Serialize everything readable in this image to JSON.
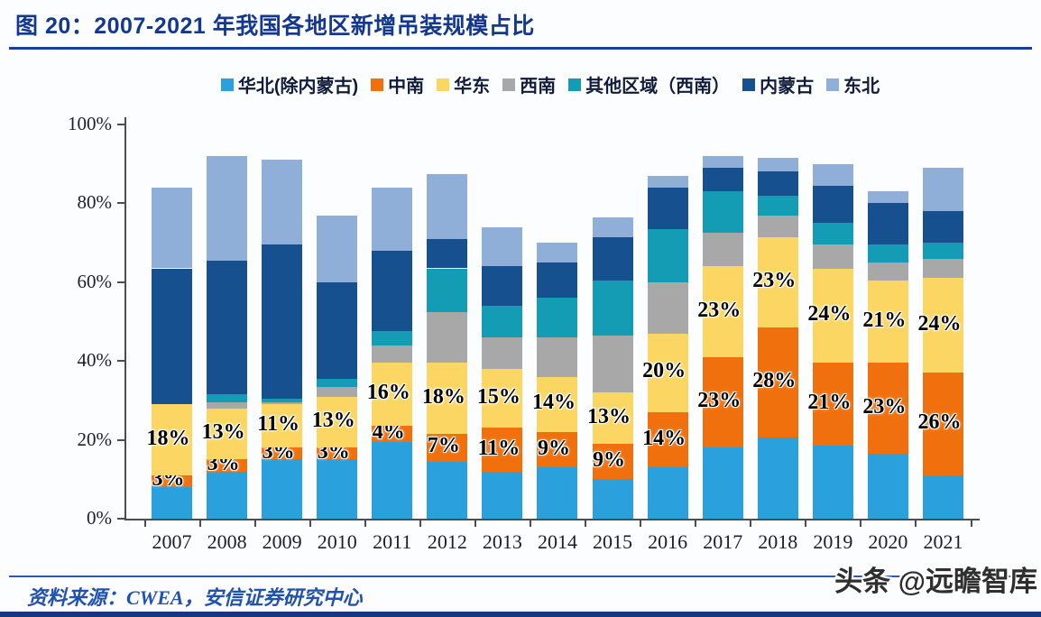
{
  "header": {
    "title": "图 20：2007-2021 年我国各地区新增吊装规模占比"
  },
  "footer": {
    "source": "资料来源：CWEA，安信证券研究中心",
    "watermark": "头条 @远瞻智库"
  },
  "chart_data": {
    "type": "bar",
    "stacked": true,
    "title": "2007-2021 年我国各地区新增吊装规模占比",
    "xlabel": "",
    "ylabel": "",
    "ylim": [
      0,
      100
    ],
    "grid": false,
    "legend_position": "top",
    "categories": [
      "2007",
      "2008",
      "2009",
      "2010",
      "2011",
      "2012",
      "2013",
      "2014",
      "2015",
      "2016",
      "2017",
      "2018",
      "2019",
      "2020",
      "2021"
    ],
    "y_ticks": [
      {
        "value": 0,
        "label": "0%"
      },
      {
        "value": 20,
        "label": "20%"
      },
      {
        "value": 40,
        "label": "40%"
      },
      {
        "value": 60,
        "label": "60%"
      },
      {
        "value": 80,
        "label": "80%"
      },
      {
        "value": 100,
        "label": "100%"
      }
    ],
    "series": [
      {
        "name": "华北(除内蒙古)",
        "color": "#2aa0dc",
        "show_labels": false,
        "values": [
          8,
          12,
          15,
          15,
          19.5,
          14.5,
          12,
          13,
          10,
          13,
          18,
          20.5,
          18.5,
          16.5,
          11
        ]
      },
      {
        "name": "中南",
        "color": "#f0700d",
        "show_labels": true,
        "values": [
          3,
          3,
          3,
          3,
          4,
          7,
          11,
          9,
          9,
          14,
          23,
          28,
          21,
          23,
          26
        ]
      },
      {
        "name": "华东",
        "color": "#fcd662",
        "show_labels": true,
        "values": [
          18,
          13,
          11,
          13,
          16,
          18,
          15,
          14,
          13,
          20,
          23,
          23,
          24,
          21,
          24
        ]
      },
      {
        "name": "西南",
        "color": "#a8a8a8",
        "show_labels": false,
        "values": [
          0,
          1.5,
          0.5,
          2.5,
          4.5,
          13,
          8,
          10,
          14.5,
          13,
          8.5,
          5.5,
          6,
          4.5,
          5
        ]
      },
      {
        "name": "其他区域（西南）",
        "color": "#149cb4",
        "show_labels": false,
        "values": [
          0,
          2,
          1,
          2,
          3.5,
          11,
          8,
          10,
          14,
          13.5,
          10.5,
          5,
          5.5,
          4.5,
          4
        ]
      },
      {
        "name": "内蒙古",
        "color": "#17508f",
        "show_labels": false,
        "values": [
          34.5,
          34,
          39,
          24.5,
          20.5,
          7.5,
          10,
          9,
          11,
          10.5,
          6,
          6,
          9.5,
          10.5,
          8
        ]
      },
      {
        "name": "东北",
        "color": "#8fafd9",
        "show_labels": false,
        "values": [
          20.5,
          26.5,
          21.5,
          17,
          16,
          16.5,
          10,
          5,
          5,
          3,
          3,
          3.5,
          5.5,
          3,
          11
        ]
      }
    ]
  }
}
